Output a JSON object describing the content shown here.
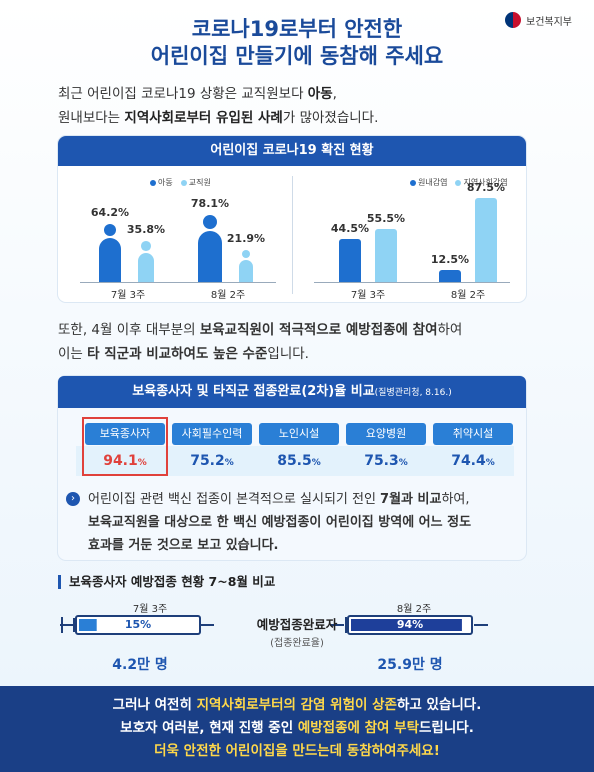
{
  "header": {
    "ministry": "보건복지부",
    "title_line1": "코로나19로부터 안전한",
    "title_line2": "어린이집 만들기에 동참해 주세요"
  },
  "intro": {
    "l1_a": "최근 어린이집 코로나19 상황은 교직원보다 ",
    "l1_b": "아동",
    "l1_c": ",",
    "l2_a": "원내보다는 ",
    "l2_b": "지역사회로부터 유입된 사례",
    "l2_c": "가 많아졌습니다."
  },
  "chart_card": {
    "title": "어린이집 코로나19 확진 현황"
  },
  "chart_data": [
    {
      "type": "bar",
      "categories": [
        "7월 3주",
        "8월 2주"
      ],
      "series": [
        {
          "name": "아동",
          "values": [
            64.2,
            78.1
          ],
          "labels": [
            "64.2%",
            "78.1%"
          ]
        },
        {
          "name": "교직원",
          "values": [
            35.8,
            21.9
          ],
          "labels": [
            "35.8%",
            "21.9%"
          ]
        }
      ],
      "colors": [
        "#1e6fcf",
        "#8fd3f4"
      ]
    },
    {
      "type": "bar",
      "categories": [
        "7월 3주",
        "8월 2주"
      ],
      "series": [
        {
          "name": "원내감염",
          "values": [
            44.5,
            12.5
          ],
          "labels": [
            "44.5%",
            "12.5%"
          ]
        },
        {
          "name": "지역사회감염",
          "values": [
            55.5,
            87.5
          ],
          "labels": [
            "55.5%",
            "87.5%"
          ]
        }
      ],
      "colors": [
        "#1e6fcf",
        "#8fd3f4"
      ]
    }
  ],
  "mid": {
    "l1_a": "또한, 4월 이후 대부분의 ",
    "l1_b": "보육교직원이 적극적으로 예방접종에 참여",
    "l1_c": "하여",
    "l2_a": "이는 ",
    "l2_b": "타 직군과 비교하여도 높은 수준",
    "l2_c": "입니다."
  },
  "table": {
    "title": "보육종사자 및 타직군 접종완료(2차)율 비교",
    "source": "(질병관리청, 8.16.)",
    "items": [
      {
        "label": "보육종사자",
        "value": "94.1",
        "unit": "%"
      },
      {
        "label": "사회필수인력",
        "value": "75.2",
        "unit": "%"
      },
      {
        "label": "노인시설",
        "value": "85.5",
        "unit": "%"
      },
      {
        "label": "요양병원",
        "value": "75.3",
        "unit": "%"
      },
      {
        "label": "취약시설",
        "value": "74.4",
        "unit": "%"
      }
    ],
    "note_icon": "›",
    "note_l1_a": "어린이집 관련 백신 접종이 본격적으로 실시되기 전인 ",
    "note_l1_b": "7월과 비교",
    "note_l1_c": "하여,",
    "note_l2": "보육교직원을 대상으로 한 백신 예방접종이 어린이집 방역에 어느 정도",
    "note_l3": "효과를 거둔 것으로 보고 있습니다."
  },
  "vaccine": {
    "section_title": "보육종사자 예방접종 현황 7~8월 비교",
    "center_label": "예방접종완료자",
    "center_sub": "(접종완료율)",
    "left": {
      "period": "7월 3주",
      "rate": "15%",
      "rate_value": 15,
      "count": "4.2만 명"
    },
    "right": {
      "period": "8월 2주",
      "rate": "94%",
      "rate_value": 94,
      "count": "25.9만 명"
    }
  },
  "footer": {
    "l1_a": "그러나 여전히 ",
    "l1_b": "지역사회로부터의 감염 위험이 상존",
    "l1_c": "하고 있습니다.",
    "l2_a": "보호자 여러분, 현재 진행 중인 ",
    "l2_b": "예방접종에 참여 부탁",
    "l2_c": "드립니다.",
    "l3": "더욱 안전한 어린이집을 만드는데 동참하여주세요!"
  }
}
